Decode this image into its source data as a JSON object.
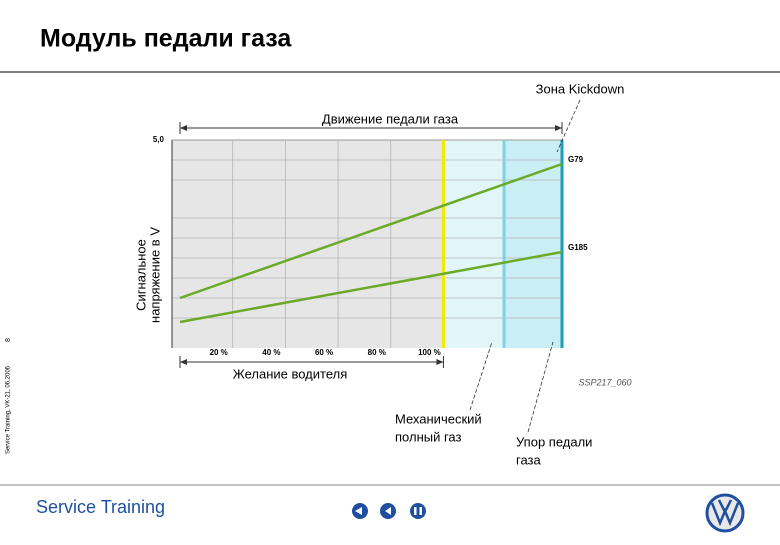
{
  "slide_title": "Модуль педали газа",
  "side_note": "Service Training, VK-21, 06.2006",
  "page_number": "8",
  "footer": "Service Training",
  "chart_data": {
    "type": "line",
    "top_dimension": "Движение педали газа",
    "bottom_dimension": "Желание водителя",
    "ylabel": [
      "Сигнальное",
      "напряжение в V"
    ],
    "zone_label": "Зона Kickdown",
    "code": "SSP217_060",
    "full_throttle_label": [
      "Механический",
      "полный газ"
    ],
    "stop_label": [
      "Упор педали",
      "газа"
    ],
    "x": [
      0,
      145
    ],
    "xlim": [
      0,
      145
    ],
    "ylim": [
      0,
      5
    ],
    "xticks": [
      {
        "value": 20,
        "label": "20 %"
      },
      {
        "value": 40,
        "label": "40 %"
      },
      {
        "value": 60,
        "label": "60 %"
      },
      {
        "value": 80,
        "label": "80 %"
      },
      {
        "value": 100,
        "label": "100 %"
      }
    ],
    "yticks": [
      {
        "value": 5,
        "label": "5,0"
      }
    ],
    "grid": true,
    "zones": [
      {
        "from": 100,
        "to": 123,
        "color": "#e2f6fa"
      },
      {
        "from": 123,
        "to": 145,
        "color": "#c9eef4"
      }
    ],
    "markers": [
      {
        "value": 100,
        "color": "#f2ea00"
      },
      {
        "value": 123,
        "color": "#7fd3e0"
      },
      {
        "value": 145,
        "color": "#1c9fb4"
      }
    ],
    "series": [
      {
        "name": "G79",
        "color": "#6aaa28",
        "values": [
          1.05,
          4.4
        ]
      },
      {
        "name": "G185",
        "color": "#6aaa28",
        "values": [
          0.45,
          2.2
        ]
      }
    ]
  }
}
